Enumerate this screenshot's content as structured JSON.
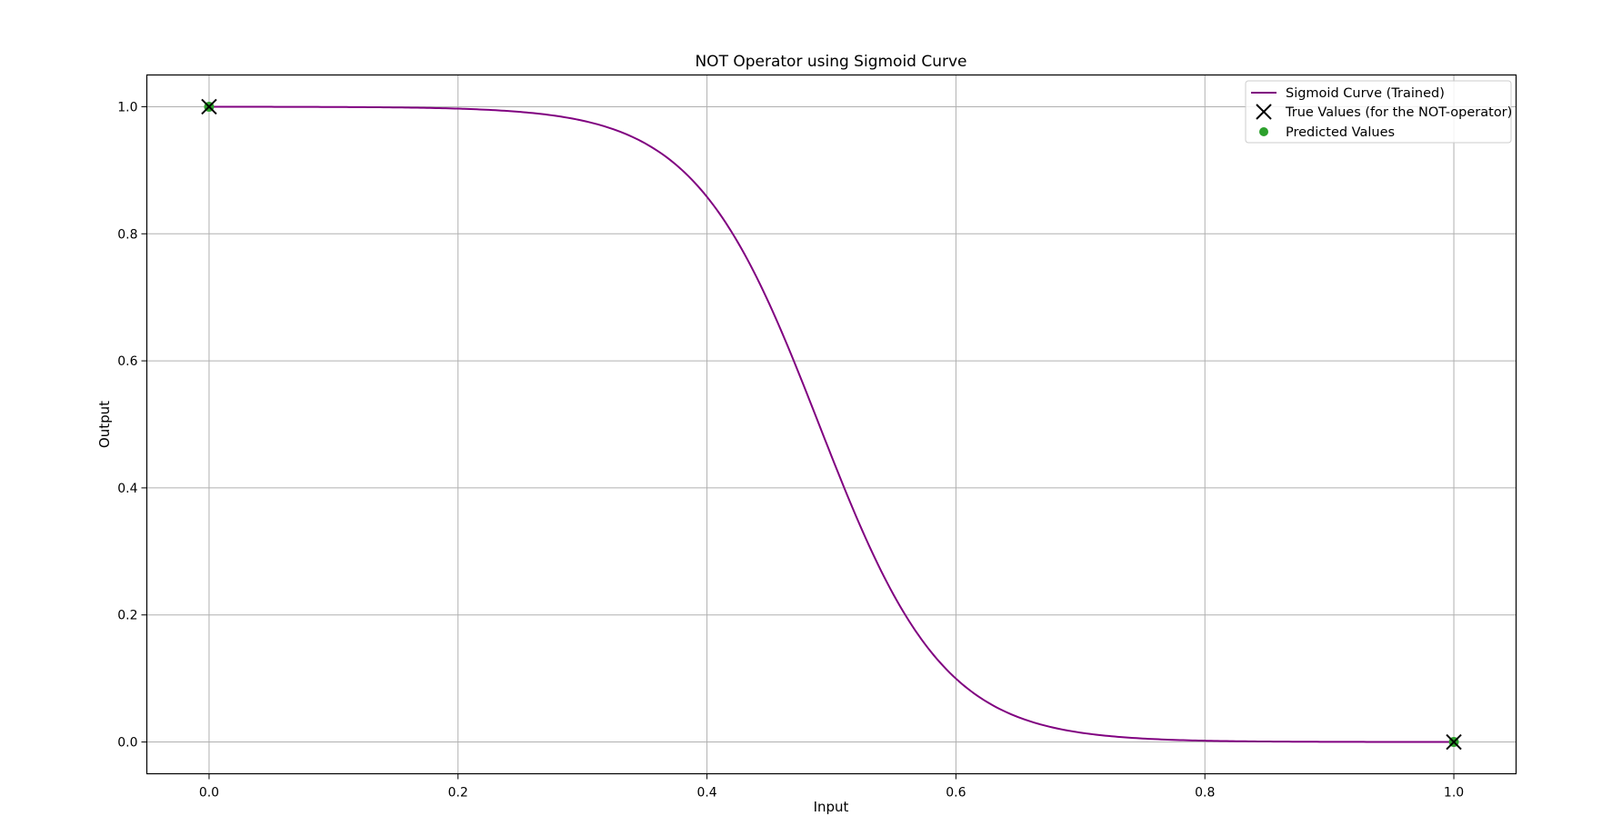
{
  "chart_data": {
    "type": "line",
    "title": "NOT Operator using Sigmoid Curve",
    "xlabel": "Input",
    "ylabel": "Output",
    "xlim": [
      -0.05,
      1.05
    ],
    "ylim": [
      -0.05,
      1.05
    ],
    "xticks": [
      0.0,
      0.2,
      0.4,
      0.6,
      0.8,
      1.0
    ],
    "xtick_labels": [
      "0.0",
      "0.2",
      "0.4",
      "0.6",
      "0.8",
      "1.0"
    ],
    "yticks": [
      0.0,
      0.2,
      0.4,
      0.6,
      0.8,
      1.0
    ],
    "ytick_labels": [
      "0.0",
      "0.2",
      "0.4",
      "0.6",
      "0.8",
      "1.0"
    ],
    "grid": true,
    "legend_position": "top-right",
    "series": [
      {
        "name": "Sigmoid Curve (Trained)",
        "kind": "line",
        "color": "#800080",
        "function": "sigmoid",
        "weight": -20.0,
        "bias": 9.8
      },
      {
        "name": "True Values (for the NOT-operator)",
        "kind": "scatter",
        "marker": "x",
        "color": "#000000",
        "x": [
          0,
          1
        ],
        "y": [
          1,
          0
        ]
      },
      {
        "name": "Predicted Values",
        "kind": "scatter",
        "marker": "circle",
        "color": "#2ca02c",
        "x": [
          0,
          1
        ],
        "y": [
          1.0,
          0.0
        ]
      }
    ]
  }
}
